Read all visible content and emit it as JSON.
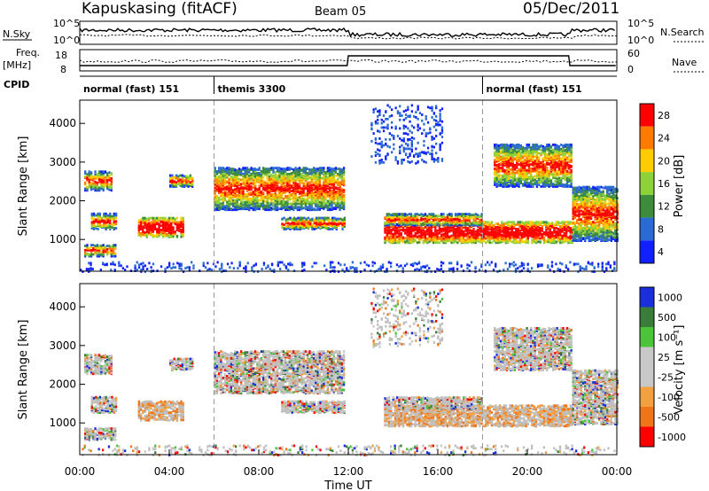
{
  "header": {
    "title": "Kapuskasing (fitACF)",
    "beam": "Beam 05",
    "date": "05/Dec/2011"
  },
  "top_panels": {
    "nsky_label": "N.Sky",
    "nsky_ticks": [
      "10^5",
      "10^0"
    ],
    "nsearch_label": "N.Search",
    "freq_label_1": "Freq.",
    "freq_label_2": "[MHz]",
    "freq_ticks": [
      "18",
      "8"
    ],
    "nave_ticks": [
      "60",
      "0"
    ],
    "nave_label": "Nave",
    "cpid_label": "CPID",
    "cpid_segments": [
      {
        "label": "normal (fast) 151",
        "start": 0.0
      },
      {
        "label": "themis 3300",
        "start": 6.0
      },
      {
        "label": "normal (fast) 151",
        "start": 18.0
      }
    ]
  },
  "time_axis": {
    "xlabel": "Time UT",
    "ticks": [
      "00:00",
      "04:00",
      "08:00",
      "12:00",
      "16:00",
      "20:00",
      "00:00"
    ]
  },
  "chart_data": [
    {
      "type": "heatmap",
      "name": "power",
      "ylabel": "Slant Range [km]",
      "xlim": [
        0,
        24
      ],
      "ylim": [
        180,
        4600
      ],
      "yticks": [
        "1000",
        "2000",
        "3000",
        "4000"
      ],
      "colorbar_label": "Power [dB]",
      "colorbar_ticks": [
        "28",
        "24",
        "20",
        "16",
        "12",
        "8",
        "4"
      ],
      "colors": [
        "#ff0000",
        "#ff7a00",
        "#ffcc00",
        "#8ed23a",
        "#3c8c3c",
        "#2a6ad4",
        "#1020ff"
      ]
    },
    {
      "type": "heatmap",
      "name": "velocity",
      "ylabel": "Slant Range [km]",
      "xlim": [
        0,
        24
      ],
      "ylim": [
        180,
        4600
      ],
      "yticks": [
        "1000",
        "2000",
        "3000",
        "4000"
      ],
      "colorbar_label": "Velocity [m s⁻¹]",
      "colorbar_ticks": [
        "1000",
        "500",
        "100",
        "25",
        "-25",
        "-100",
        "-500",
        "-1000"
      ],
      "colors": [
        "#1a2edb",
        "#3a7d3a",
        "#4cc43a",
        "#c8c8c8",
        "#c8c8c8",
        "#f2a040",
        "#f07418",
        "#ff0000"
      ]
    }
  ],
  "ground_scatter_color": "#bfbfbf"
}
